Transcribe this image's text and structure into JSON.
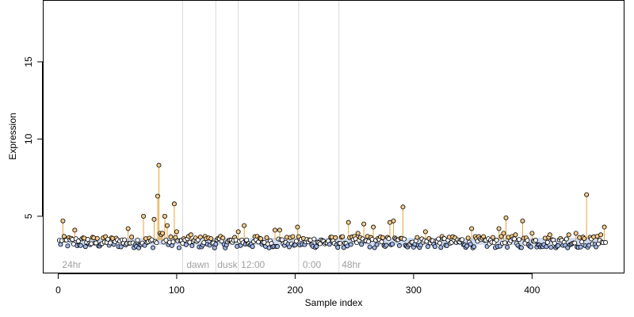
{
  "chart_data": {
    "type": "scatter",
    "title": "",
    "xlabel": "Sample index",
    "ylabel": "Expression",
    "xlim": [
      -13,
      478
    ],
    "ylim": [
      1.3,
      19.0
    ],
    "xticks": [
      "0",
      "100",
      "200",
      "300",
      "400"
    ],
    "xtick_values": [
      0,
      100,
      200,
      300,
      400
    ],
    "yticks": [
      "5",
      "10",
      "15"
    ],
    "ytick_values": [
      5,
      10,
      15
    ],
    "baseline": 3.45,
    "n_samples": 462,
    "period_dividers": [
      105,
      133,
      152,
      203,
      237
    ],
    "period_labels": [
      {
        "text": "24hr",
        "x": 2
      },
      {
        "text": "dawn",
        "x": 107
      },
      {
        "text": "dusk",
        "x": 133
      },
      {
        "text": "12:00",
        "x": 153
      },
      {
        "text": "0:00",
        "x": 205
      },
      {
        "text": "48hr",
        "x": 238
      }
    ],
    "peaks": [
      {
        "x": 4,
        "y": 4.7
      },
      {
        "x": 14,
        "y": 4.1
      },
      {
        "x": 38,
        "y": 3.6
      },
      {
        "x": 59,
        "y": 4.2
      },
      {
        "x": 72,
        "y": 5.0
      },
      {
        "x": 81,
        "y": 4.8
      },
      {
        "x": 84,
        "y": 6.3
      },
      {
        "x": 85,
        "y": 8.3
      },
      {
        "x": 86,
        "y": 3.9
      },
      {
        "x": 87,
        "y": 3.8
      },
      {
        "x": 88,
        "y": 3.9
      },
      {
        "x": 90,
        "y": 5.0
      },
      {
        "x": 92,
        "y": 4.4
      },
      {
        "x": 98,
        "y": 5.8
      },
      {
        "x": 100,
        "y": 4.0
      },
      {
        "x": 112,
        "y": 3.8
      },
      {
        "x": 124,
        "y": 3.7
      },
      {
        "x": 152,
        "y": 4.0
      },
      {
        "x": 157,
        "y": 4.4
      },
      {
        "x": 168,
        "y": 3.7
      },
      {
        "x": 183,
        "y": 4.1
      },
      {
        "x": 187,
        "y": 4.1
      },
      {
        "x": 202,
        "y": 4.3
      },
      {
        "x": 245,
        "y": 4.6
      },
      {
        "x": 253,
        "y": 3.9
      },
      {
        "x": 258,
        "y": 4.5
      },
      {
        "x": 261,
        "y": 3.7
      },
      {
        "x": 266,
        "y": 4.3
      },
      {
        "x": 280,
        "y": 4.6
      },
      {
        "x": 283,
        "y": 4.7
      },
      {
        "x": 291,
        "y": 5.6
      },
      {
        "x": 310,
        "y": 4.0
      },
      {
        "x": 335,
        "y": 3.6
      },
      {
        "x": 349,
        "y": 4.2
      },
      {
        "x": 372,
        "y": 4.2
      },
      {
        "x": 376,
        "y": 3.9
      },
      {
        "x": 378,
        "y": 4.9
      },
      {
        "x": 386,
        "y": 3.8
      },
      {
        "x": 392,
        "y": 4.7
      },
      {
        "x": 400,
        "y": 3.9
      },
      {
        "x": 415,
        "y": 3.8
      },
      {
        "x": 431,
        "y": 3.8
      },
      {
        "x": 437,
        "y": 3.9
      },
      {
        "x": 446,
        "y": 6.4
      },
      {
        "x": 455,
        "y": 3.7
      },
      {
        "x": 458,
        "y": 3.8
      },
      {
        "x": 461,
        "y": 4.3
      }
    ],
    "grid": false,
    "legend": "none",
    "colors": {
      "stem": "#e8a33c",
      "point_edge": "#000000",
      "point_fill_low": "#9fb8ec",
      "point_fill_high": "#f5c98a",
      "point_fill_mid": "#ffffff",
      "divider": "#d9d9d9",
      "band": "#a8bfe8",
      "period_text": "#a0a0a0"
    }
  }
}
